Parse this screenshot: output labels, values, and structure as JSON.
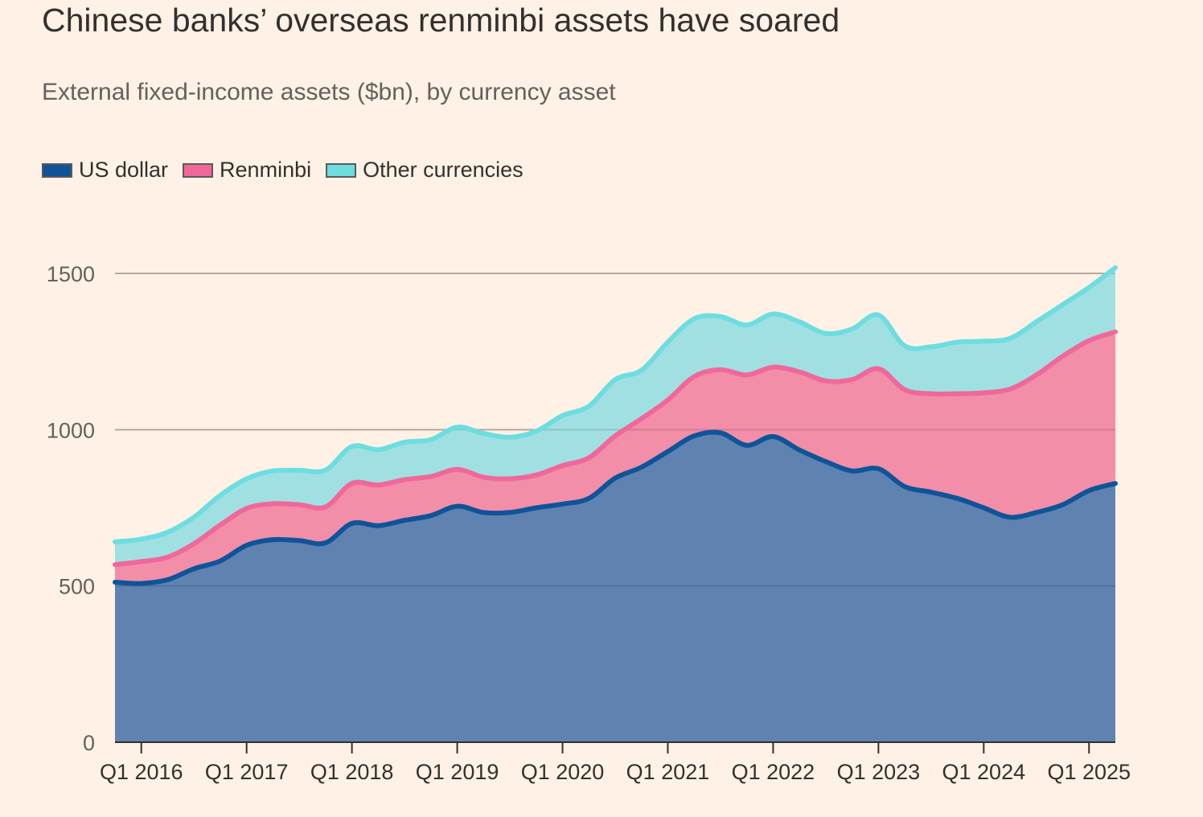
{
  "header": {
    "title": "Chinese banks’ overseas renminbi assets have soared",
    "subtitle": "External fixed-income assets ($bn), by currency asset"
  },
  "chart_data": {
    "type": "area",
    "stacked": true,
    "title": "Chinese banks’ overseas renminbi assets have soared",
    "subtitle": "External fixed-income assets ($bn), by currency asset",
    "xlabel": "",
    "ylabel": "",
    "ylim": [
      0,
      1500
    ],
    "yticks": [
      0,
      500,
      1000,
      1500
    ],
    "xtick_labels": [
      "Q1 2016",
      "Q1 2017",
      "Q1 2018",
      "Q1 2019",
      "Q1 2020",
      "Q1 2021",
      "Q1 2022",
      "Q1 2023",
      "Q1 2024",
      "Q1 2025"
    ],
    "grid": true,
    "legend_position": "top-left",
    "x": [
      "Q4 2015",
      "Q1 2016",
      "Q2 2016",
      "Q3 2016",
      "Q4 2016",
      "Q1 2017",
      "Q2 2017",
      "Q3 2017",
      "Q4 2017",
      "Q1 2018",
      "Q2 2018",
      "Q3 2018",
      "Q4 2018",
      "Q1 2019",
      "Q2 2019",
      "Q3 2019",
      "Q4 2019",
      "Q1 2020",
      "Q2 2020",
      "Q3 2020",
      "Q4 2020",
      "Q1 2021",
      "Q2 2021",
      "Q3 2021",
      "Q4 2021",
      "Q1 2022",
      "Q2 2022",
      "Q3 2022",
      "Q4 2022",
      "Q1 2023",
      "Q2 2023",
      "Q3 2023",
      "Q4 2023",
      "Q1 2024",
      "Q2 2024",
      "Q3 2024",
      "Q4 2024",
      "Q1 2025",
      "Q2 2025"
    ],
    "series": [
      {
        "name": "US dollar",
        "color": "#0f5499",
        "fill": "#5f82b0",
        "values": [
          512,
          508,
          520,
          555,
          580,
          630,
          648,
          645,
          638,
          700,
          693,
          710,
          725,
          755,
          735,
          735,
          750,
          762,
          780,
          845,
          880,
          930,
          980,
          990,
          950,
          978,
          935,
          898,
          868,
          875,
          818,
          800,
          780,
          750,
          720,
          735,
          760,
          805,
          828
        ]
      },
      {
        "name": "Renminbi",
        "color": "#f0689a",
        "fill": "#f28ea8",
        "values": [
          56,
          70,
          72,
          80,
          115,
          118,
          115,
          115,
          115,
          128,
          130,
          130,
          125,
          118,
          113,
          108,
          105,
          123,
          130,
          135,
          155,
          165,
          190,
          202,
          225,
          222,
          250,
          258,
          292,
          320,
          310,
          315,
          335,
          368,
          410,
          440,
          475,
          480,
          485
        ]
      },
      {
        "name": "Other currencies",
        "color": "#6ddde0",
        "fill": "#a0e0e3",
        "values": [
          73,
          72,
          80,
          85,
          95,
          95,
          105,
          110,
          118,
          118,
          113,
          120,
          118,
          135,
          140,
          133,
          140,
          160,
          165,
          180,
          155,
          185,
          185,
          170,
          160,
          170,
          160,
          152,
          162,
          172,
          140,
          150,
          165,
          165,
          162,
          170,
          165,
          170,
          205
        ]
      }
    ]
  }
}
